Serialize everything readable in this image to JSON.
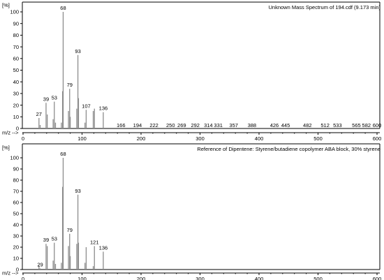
{
  "chart_data": [
    {
      "type": "bar",
      "title": "Unknown Mass Spectrum of 194.cdf (9.173 min)",
      "ylabel": "[%]",
      "xlabel": "m/z -->",
      "xlim": [
        0,
        600
      ],
      "ylim": [
        0,
        100
      ],
      "xticks": [
        0,
        100,
        200,
        300,
        400,
        500,
        600
      ],
      "yticks": [
        0,
        10,
        20,
        30,
        40,
        50,
        60,
        70,
        80,
        90,
        100
      ],
      "grid": false,
      "peaks": [
        {
          "mz": 27,
          "intensity": 9
        },
        {
          "mz": 29,
          "intensity": 3
        },
        {
          "mz": 39,
          "intensity": 22
        },
        {
          "mz": 41,
          "intensity": 12
        },
        {
          "mz": 51,
          "intensity": 8
        },
        {
          "mz": 53,
          "intensity": 23
        },
        {
          "mz": 55,
          "intensity": 5
        },
        {
          "mz": 65,
          "intensity": 5
        },
        {
          "mz": 67,
          "intensity": 32
        },
        {
          "mz": 68,
          "intensity": 100
        },
        {
          "mz": 77,
          "intensity": 15
        },
        {
          "mz": 79,
          "intensity": 34
        },
        {
          "mz": 80,
          "intensity": 10
        },
        {
          "mz": 91,
          "intensity": 17
        },
        {
          "mz": 93,
          "intensity": 63
        },
        {
          "mz": 94,
          "intensity": 26
        },
        {
          "mz": 105,
          "intensity": 5
        },
        {
          "mz": 107,
          "intensity": 16
        },
        {
          "mz": 119,
          "intensity": 15
        },
        {
          "mz": 121,
          "intensity": 17
        },
        {
          "mz": 136,
          "intensity": 14
        }
      ],
      "labels": [
        {
          "mz": 27,
          "intensity": 9,
          "text": "27"
        },
        {
          "mz": 39,
          "intensity": 22,
          "text": "39"
        },
        {
          "mz": 53,
          "intensity": 23,
          "text": "53"
        },
        {
          "mz": 68,
          "intensity": 100,
          "text": "68"
        },
        {
          "mz": 79,
          "intensity": 34,
          "text": "79"
        },
        {
          "mz": 93,
          "intensity": 63,
          "text": "93"
        },
        {
          "mz": 107,
          "intensity": 16,
          "text": "107"
        },
        {
          "mz": 136,
          "intensity": 14,
          "text": "136"
        },
        {
          "mz": 166,
          "intensity": 0,
          "text": "166"
        },
        {
          "mz": 194,
          "intensity": 0,
          "text": "194"
        },
        {
          "mz": 222,
          "intensity": 0,
          "text": "222"
        },
        {
          "mz": 250,
          "intensity": 0,
          "text": "250"
        },
        {
          "mz": 269,
          "intensity": 0,
          "text": "269"
        },
        {
          "mz": 292,
          "intensity": 0,
          "text": "292"
        },
        {
          "mz": 314,
          "intensity": 0,
          "text": "314"
        },
        {
          "mz": 331,
          "intensity": 0,
          "text": "331"
        },
        {
          "mz": 357,
          "intensity": 0,
          "text": "357"
        },
        {
          "mz": 388,
          "intensity": 0,
          "text": "388"
        },
        {
          "mz": 426,
          "intensity": 0,
          "text": "426"
        },
        {
          "mz": 445,
          "intensity": 0,
          "text": "445"
        },
        {
          "mz": 482,
          "intensity": 0,
          "text": "482"
        },
        {
          "mz": 512,
          "intensity": 0,
          "text": "512"
        },
        {
          "mz": 533,
          "intensity": 0,
          "text": "533"
        },
        {
          "mz": 565,
          "intensity": 0,
          "text": "565"
        },
        {
          "mz": 582,
          "intensity": 0,
          "text": "582"
        },
        {
          "mz": 600,
          "intensity": 0,
          "text": "600"
        }
      ]
    },
    {
      "type": "bar",
      "title": "Reference of Dipentene: Styrene/butadiene copolymer ABA block, 30% styrene",
      "ylabel": "[%]",
      "xlabel": "m/z -->",
      "xlim": [
        0,
        600
      ],
      "ylim": [
        0,
        100
      ],
      "xticks": [
        0,
        100,
        200,
        300,
        400,
        500,
        600
      ],
      "yticks": [
        0,
        10,
        20,
        30,
        40,
        50,
        60,
        70,
        80,
        90,
        100
      ],
      "grid": false,
      "peaks": [
        {
          "mz": 27,
          "intensity": 4
        },
        {
          "mz": 29,
          "intensity": 1
        },
        {
          "mz": 39,
          "intensity": 23
        },
        {
          "mz": 41,
          "intensity": 21
        },
        {
          "mz": 51,
          "intensity": 8
        },
        {
          "mz": 53,
          "intensity": 24
        },
        {
          "mz": 55,
          "intensity": 5
        },
        {
          "mz": 65,
          "intensity": 6
        },
        {
          "mz": 67,
          "intensity": 74
        },
        {
          "mz": 68,
          "intensity": 100
        },
        {
          "mz": 77,
          "intensity": 21
        },
        {
          "mz": 79,
          "intensity": 32
        },
        {
          "mz": 80,
          "intensity": 12
        },
        {
          "mz": 91,
          "intensity": 23
        },
        {
          "mz": 93,
          "intensity": 67
        },
        {
          "mz": 94,
          "intensity": 24
        },
        {
          "mz": 105,
          "intensity": 6
        },
        {
          "mz": 107,
          "intensity": 20
        },
        {
          "mz": 119,
          "intensity": 3
        },
        {
          "mz": 121,
          "intensity": 21
        },
        {
          "mz": 136,
          "intensity": 16
        }
      ],
      "labels": [
        {
          "mz": 29,
          "intensity": 1,
          "text": "29"
        },
        {
          "mz": 39,
          "intensity": 23,
          "text": "39"
        },
        {
          "mz": 53,
          "intensity": 24,
          "text": "53"
        },
        {
          "mz": 68,
          "intensity": 100,
          "text": "68"
        },
        {
          "mz": 79,
          "intensity": 32,
          "text": "79"
        },
        {
          "mz": 93,
          "intensity": 67,
          "text": "93"
        },
        {
          "mz": 121,
          "intensity": 21,
          "text": "121"
        },
        {
          "mz": 136,
          "intensity": 16,
          "text": "136"
        }
      ]
    }
  ],
  "colors": {
    "peak": "#8c8c8c",
    "axis": "#000000",
    "frame": "#000000"
  }
}
